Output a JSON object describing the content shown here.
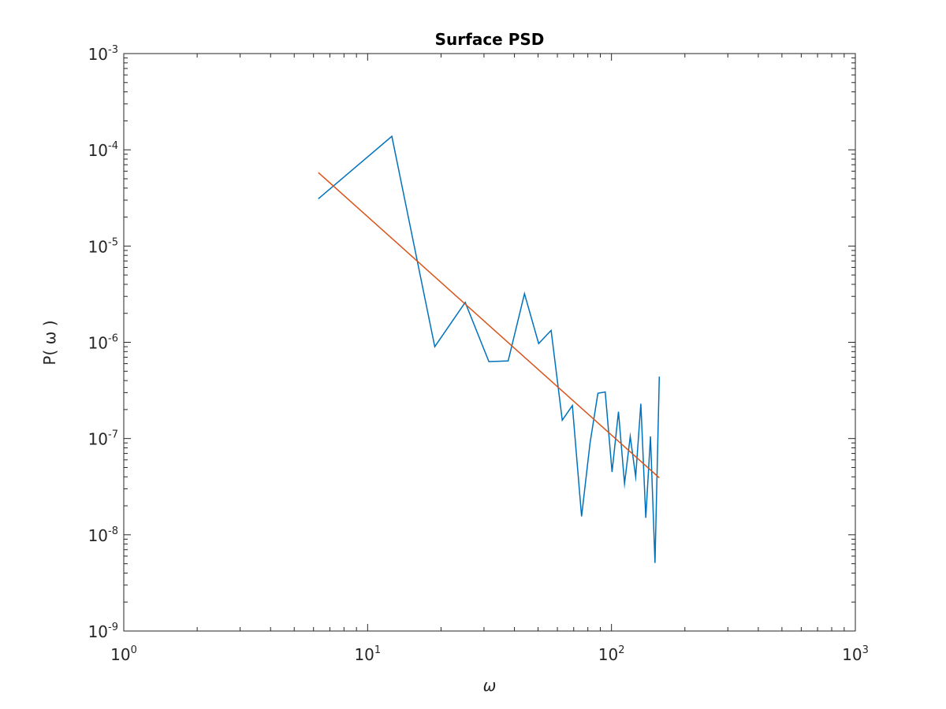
{
  "chart_data": {
    "type": "line",
    "title": "Surface PSD",
    "xlabel": "ω",
    "ylabel": "P( ω )",
    "xscale": "log",
    "yscale": "log",
    "xlim": [
      1,
      1000
    ],
    "ylim": [
      1e-09,
      0.001
    ],
    "grid": false,
    "x_ticks": [
      {
        "value": 1,
        "base": "10",
        "exp": "0"
      },
      {
        "value": 10,
        "base": "10",
        "exp": "1"
      },
      {
        "value": 100,
        "base": "10",
        "exp": "2"
      },
      {
        "value": 1000,
        "base": "10",
        "exp": "3"
      }
    ],
    "y_ticks": [
      {
        "value": 1e-09,
        "base": "10",
        "exp": "-9"
      },
      {
        "value": 1e-08,
        "base": "10",
        "exp": "-8"
      },
      {
        "value": 1e-07,
        "base": "10",
        "exp": "-7"
      },
      {
        "value": 1e-06,
        "base": "10",
        "exp": "-6"
      },
      {
        "value": 1e-05,
        "base": "10",
        "exp": "-5"
      },
      {
        "value": 0.0001,
        "base": "10",
        "exp": "-4"
      },
      {
        "value": 0.001,
        "base": "10",
        "exp": "-3"
      }
    ],
    "series": [
      {
        "color": "#0072bd",
        "x": [
          6.28,
          12.57,
          18.85,
          25.13,
          31.42,
          37.7,
          43.98,
          50.27,
          56.55,
          62.83,
          69.12,
          75.4,
          81.68,
          87.96,
          94.25,
          100.53,
          106.81,
          113.1,
          119.38,
          125.66,
          131.95,
          138.23,
          144.51,
          150.8,
          157.08
        ],
        "y": [
          3.1e-05,
          0.000138,
          9e-07,
          2.6e-06,
          6.3e-07,
          6.4e-07,
          3.2e-06,
          9.7e-07,
          1.33e-06,
          1.55e-07,
          2.2e-07,
          1.55e-08,
          9e-08,
          2.95e-07,
          3.05e-07,
          4.5e-08,
          1.9e-07,
          3.4e-08,
          1.05e-07,
          4e-08,
          2.3e-07,
          1.5e-08,
          1.05e-07,
          5.1e-09,
          4.4e-07
        ]
      },
      {
        "color": "#d95319",
        "x": [
          6.28,
          157.08
        ],
        "y": [
          5.8e-05,
          3.9e-08
        ]
      }
    ]
  }
}
